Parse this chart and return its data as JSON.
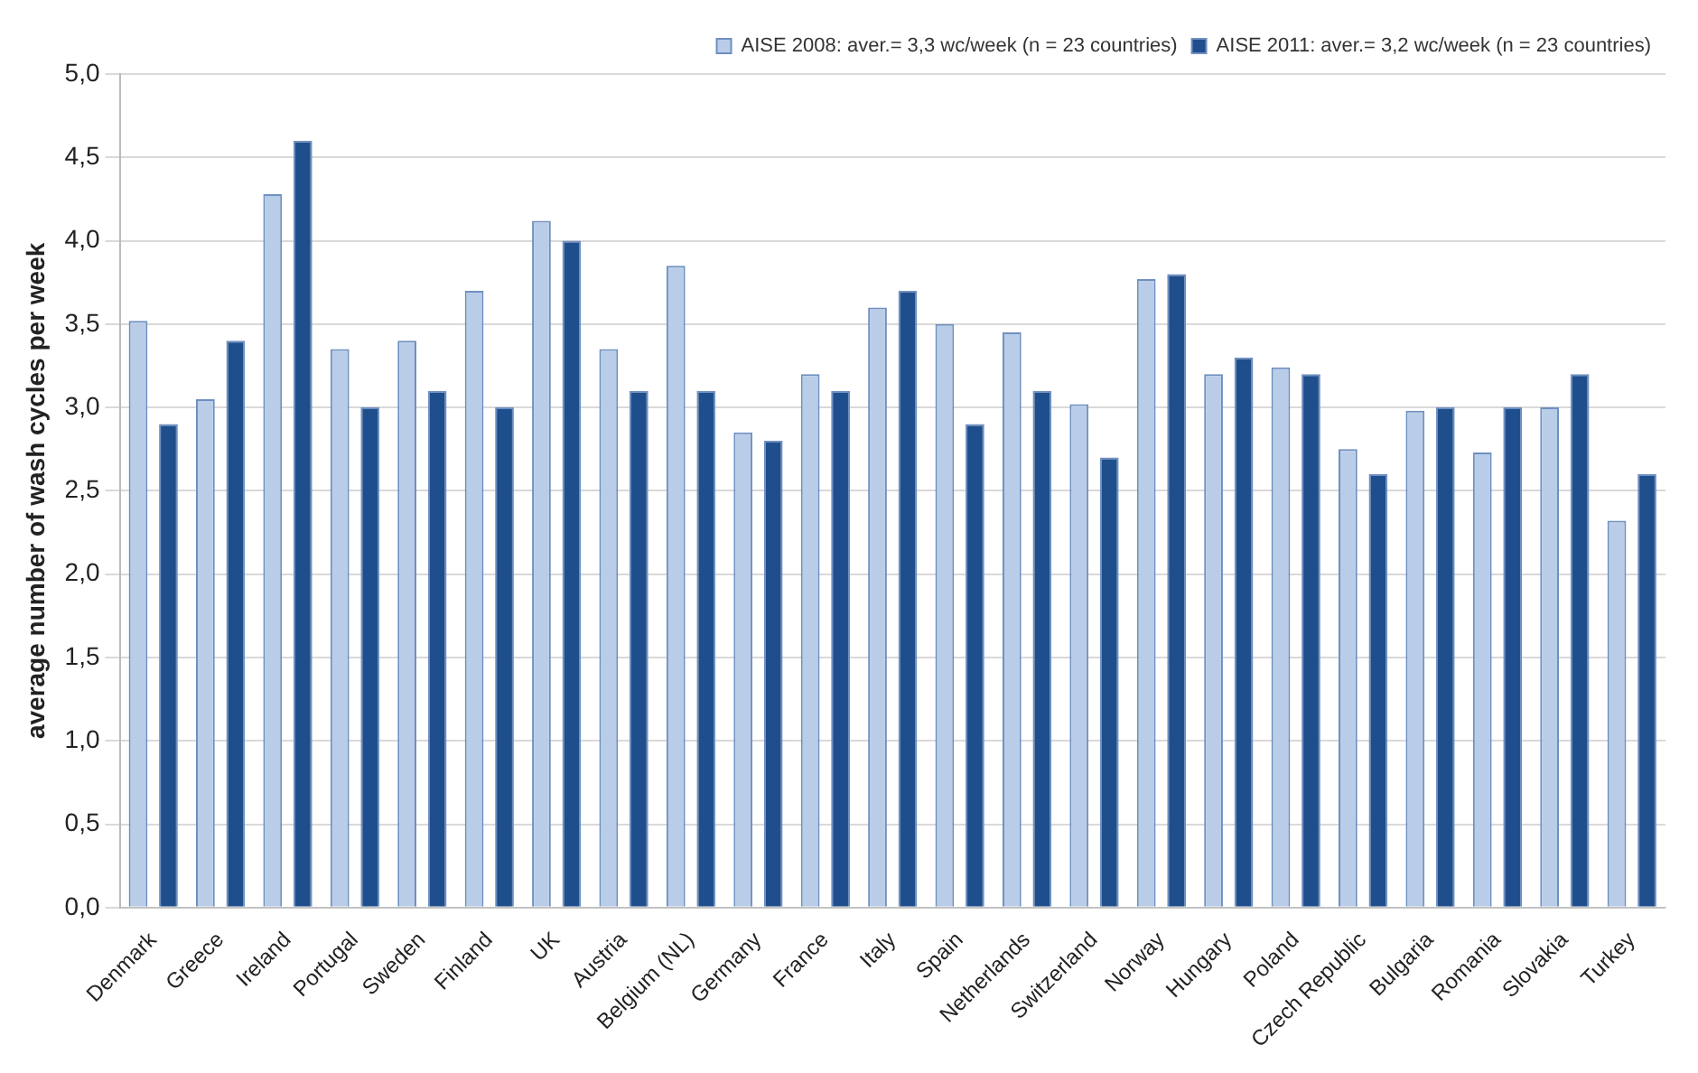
{
  "chart_data": {
    "type": "bar",
    "ylabel": "average number of wash cycles per week",
    "categories": [
      "Denmark",
      "Greece",
      "Ireland",
      "Portugal",
      "Sweden",
      "Finland",
      "UK",
      "Austria",
      "Belgium (NL)",
      "Germany",
      "France",
      "Italy",
      "Spain",
      "Netherlands",
      "Switzerland",
      "Norway",
      "Hungary",
      "Poland",
      "Czech Republic",
      "Bulgaria",
      "Romania",
      "Slovakia",
      "Turkey"
    ],
    "series": [
      {
        "name": "AISE 2008: aver.= 3,3 wc/week (n = 23 countries)",
        "color": "#b9cde8",
        "values": [
          3.52,
          3.05,
          4.28,
          3.35,
          3.4,
          3.7,
          4.12,
          3.35,
          3.85,
          2.85,
          3.2,
          3.6,
          3.5,
          3.45,
          3.02,
          3.77,
          3.2,
          3.24,
          2.75,
          2.98,
          2.73,
          3.0,
          2.32
        ]
      },
      {
        "name": "AISE 2011: aver.= 3,2 wc/week (n = 23 countries)",
        "color": "#1f4e8c",
        "values": [
          2.9,
          3.4,
          4.6,
          3.0,
          3.1,
          3.0,
          4.0,
          3.1,
          3.1,
          2.8,
          3.1,
          3.7,
          2.9,
          3.1,
          2.7,
          3.8,
          3.3,
          3.2,
          2.6,
          3.0,
          3.0,
          3.2,
          2.6
        ]
      }
    ],
    "ylim": [
      0,
      5
    ],
    "yticks": [
      {
        "value": 0,
        "label": "0,0"
      },
      {
        "value": 0.5,
        "label": "0,5"
      },
      {
        "value": 1,
        "label": "1,0"
      },
      {
        "value": 1.5,
        "label": "1,5"
      },
      {
        "value": 2,
        "label": "2,0"
      },
      {
        "value": 2.5,
        "label": "2,5"
      },
      {
        "value": 3,
        "label": "3,0"
      },
      {
        "value": 3.5,
        "label": "3,5"
      },
      {
        "value": 4,
        "label": "4,0"
      },
      {
        "value": 4.5,
        "label": "4,5"
      },
      {
        "value": 5,
        "label": "5,0"
      }
    ],
    "grid": "y",
    "legend": "top right"
  }
}
